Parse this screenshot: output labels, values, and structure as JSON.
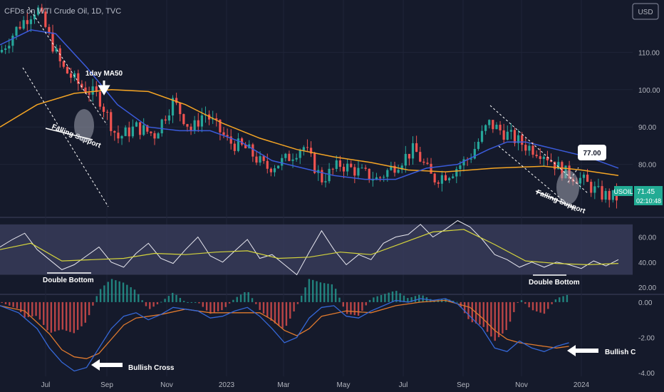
{
  "header": {
    "title": "CFDs on WTI Crude Oil, 1D, TVC",
    "currency": "USD"
  },
  "price_badge": {
    "symbol": "USOIL",
    "price": "71.45",
    "countdown": "02:10:48"
  },
  "colors": {
    "background": "#151a2b",
    "up": "#26a69a",
    "down": "#ef5350",
    "ma50": "#3b5bdb",
    "ma200": "#f5a524",
    "rsi": "#e8e8f0",
    "rsi_ma": "#d4d43c",
    "macd": "#3568d8",
    "signal": "#e07a2e",
    "rsi_band": "#3a3d5c",
    "badge": "#22ab94"
  },
  "chart_data": [
    {
      "type": "line",
      "name": "price",
      "x_ticks": [
        "Jul",
        "Sep",
        "Nov",
        "2023",
        "Mar",
        "May",
        "Jul",
        "Sep",
        "Nov",
        "2024"
      ],
      "y_ticks": [
        "110.00",
        "100.00",
        "90.00",
        "80.00"
      ],
      "ylim": [
        66,
        124
      ],
      "price_path": [
        [
          0,
          110
        ],
        [
          3,
          117
        ],
        [
          6,
          122
        ],
        [
          10,
          106
        ],
        [
          13,
          101
        ],
        [
          16,
          98
        ],
        [
          19,
          87
        ],
        [
          22,
          90
        ],
        [
          25,
          88
        ],
        [
          28,
          97
        ],
        [
          31,
          89
        ],
        [
          33,
          94
        ],
        [
          35,
          90
        ],
        [
          37,
          86
        ],
        [
          40,
          84
        ],
        [
          43,
          79
        ],
        [
          46,
          81
        ],
        [
          49,
          85
        ],
        [
          52,
          76
        ],
        [
          55,
          80
        ],
        [
          58,
          78
        ],
        [
          61,
          76
        ],
        [
          64,
          80
        ],
        [
          67,
          84
        ],
        [
          70,
          76
        ],
        [
          73,
          78
        ],
        [
          76,
          82
        ],
        [
          79,
          91
        ],
        [
          82,
          88
        ],
        [
          85,
          85
        ],
        [
          88,
          83
        ],
        [
          91,
          78
        ],
        [
          94,
          76
        ],
        [
          97,
          72
        ],
        [
          100,
          71
        ]
      ],
      "ma50": [
        [
          0,
          112
        ],
        [
          5,
          116
        ],
        [
          9,
          115
        ],
        [
          14,
          106
        ],
        [
          19,
          96
        ],
        [
          24,
          90
        ],
        [
          29,
          89
        ],
        [
          34,
          89
        ],
        [
          39,
          86
        ],
        [
          44,
          81
        ],
        [
          49,
          79
        ],
        [
          54,
          77
        ],
        [
          59,
          76
        ],
        [
          64,
          76
        ],
        [
          69,
          79
        ],
        [
          74,
          80
        ],
        [
          79,
          84
        ],
        [
          82,
          86
        ],
        [
          85,
          86
        ],
        [
          90,
          84
        ],
        [
          95,
          82
        ],
        [
          100,
          79
        ]
      ],
      "ma200": [
        [
          0,
          90
        ],
        [
          6,
          96
        ],
        [
          12,
          99
        ],
        [
          18,
          100
        ],
        [
          24,
          99.5
        ],
        [
          30,
          96
        ],
        [
          36,
          91
        ],
        [
          42,
          87
        ],
        [
          48,
          84
        ],
        [
          54,
          82
        ],
        [
          60,
          80.5
        ],
        [
          66,
          78.5
        ],
        [
          72,
          78
        ],
        [
          80,
          79
        ],
        [
          88,
          79.5
        ],
        [
          94,
          78.5
        ],
        [
          100,
          77
        ]
      ],
      "target": "77.00",
      "annotations": [
        "1day MA50",
        "Falling Support",
        "Falling Support"
      ]
    },
    {
      "type": "line",
      "name": "rsi",
      "y_ticks": [
        "60.00",
        "40.00",
        "20.00"
      ],
      "ylim": [
        15,
        75
      ],
      "band": [
        30,
        70
      ],
      "rsi": [
        [
          0,
          52
        ],
        [
          2,
          58
        ],
        [
          4,
          63
        ],
        [
          6,
          50
        ],
        [
          8,
          42
        ],
        [
          10,
          34
        ],
        [
          12,
          38
        ],
        [
          14,
          45
        ],
        [
          16,
          52
        ],
        [
          18,
          40
        ],
        [
          20,
          36
        ],
        [
          22,
          47
        ],
        [
          24,
          55
        ],
        [
          26,
          43
        ],
        [
          28,
          39
        ],
        [
          30,
          50
        ],
        [
          32,
          60
        ],
        [
          34,
          45
        ],
        [
          36,
          40
        ],
        [
          38,
          49
        ],
        [
          40,
          58
        ],
        [
          42,
          43
        ],
        [
          44,
          46
        ],
        [
          46,
          38
        ],
        [
          48,
          30
        ],
        [
          50,
          48
        ],
        [
          52,
          65
        ],
        [
          54,
          50
        ],
        [
          56,
          38
        ],
        [
          58,
          46
        ],
        [
          60,
          42
        ],
        [
          62,
          55
        ],
        [
          64,
          60
        ],
        [
          66,
          62
        ],
        [
          68,
          70
        ],
        [
          70,
          60
        ],
        [
          72,
          66
        ],
        [
          74,
          73
        ],
        [
          76,
          68
        ],
        [
          78,
          58
        ],
        [
          80,
          46
        ],
        [
          82,
          42
        ],
        [
          84,
          36
        ],
        [
          86,
          40
        ],
        [
          88,
          36
        ],
        [
          90,
          40
        ],
        [
          92,
          38
        ],
        [
          94,
          35
        ],
        [
          96,
          41
        ],
        [
          98,
          37
        ],
        [
          100,
          42
        ]
      ],
      "rsi_ma": [
        [
          0,
          50
        ],
        [
          5,
          55
        ],
        [
          10,
          41
        ],
        [
          15,
          42
        ],
        [
          20,
          43
        ],
        [
          25,
          47
        ],
        [
          30,
          46
        ],
        [
          35,
          48
        ],
        [
          40,
          49
        ],
        [
          45,
          43
        ],
        [
          50,
          44
        ],
        [
          55,
          48
        ],
        [
          60,
          46
        ],
        [
          65,
          55
        ],
        [
          70,
          64
        ],
        [
          75,
          66
        ],
        [
          80,
          54
        ],
        [
          85,
          41
        ],
        [
          90,
          39
        ],
        [
          95,
          38
        ],
        [
          100,
          39
        ]
      ],
      "annotations": [
        "Double Bottom",
        "Double Bottom"
      ]
    },
    {
      "type": "line",
      "name": "macd",
      "y_ticks": [
        "0.00",
        "-2.00",
        "-4.00"
      ],
      "ylim": [
        -4.2,
        0.4
      ],
      "macd": [
        [
          0,
          -0.2
        ],
        [
          3,
          -0.6
        ],
        [
          6,
          -1.5
        ],
        [
          8,
          -2.6
        ],
        [
          10,
          -3.4
        ],
        [
          12,
          -3.9
        ],
        [
          14,
          -3.7
        ],
        [
          16,
          -2.6
        ],
        [
          18,
          -1.5
        ],
        [
          20,
          -0.8
        ],
        [
          22,
          -0.6
        ],
        [
          24,
          -1.0
        ],
        [
          26,
          -0.7
        ],
        [
          28,
          -0.3
        ],
        [
          30,
          -0.4
        ],
        [
          32,
          -0.5
        ],
        [
          34,
          -0.9
        ],
        [
          36,
          -0.8
        ],
        [
          38,
          -0.5
        ],
        [
          40,
          -0.3
        ],
        [
          42,
          -0.8
        ],
        [
          44,
          -1.5
        ],
        [
          46,
          -2.3
        ],
        [
          48,
          -2.0
        ],
        [
          50,
          -0.9
        ],
        [
          52,
          -0.3
        ],
        [
          54,
          -0.2
        ],
        [
          56,
          -0.8
        ],
        [
          58,
          -0.9
        ],
        [
          60,
          -0.5
        ],
        [
          62,
          -0.2
        ],
        [
          64,
          0.1
        ],
        [
          66,
          0.0
        ],
        [
          68,
          0.2
        ],
        [
          70,
          0.1
        ],
        [
          72,
          0.2
        ],
        [
          74,
          -0.1
        ],
        [
          76,
          -0.8
        ],
        [
          78,
          -1.5
        ],
        [
          80,
          -2.6
        ],
        [
          82,
          -2.8
        ],
        [
          84,
          -2.2
        ],
        [
          86,
          -2.6
        ],
        [
          88,
          -2.8
        ],
        [
          90,
          -2.5
        ],
        [
          92,
          -2.3
        ]
      ],
      "signal": [
        [
          0,
          -0.2
        ],
        [
          4,
          -0.5
        ],
        [
          8,
          -1.8
        ],
        [
          10,
          -2.7
        ],
        [
          12,
          -3.1
        ],
        [
          14,
          -3.2
        ],
        [
          16,
          -2.9
        ],
        [
          18,
          -2.1
        ],
        [
          20,
          -1.3
        ],
        [
          22,
          -0.9
        ],
        [
          26,
          -0.7
        ],
        [
          30,
          -0.4
        ],
        [
          34,
          -0.6
        ],
        [
          38,
          -0.6
        ],
        [
          42,
          -0.6
        ],
        [
          44,
          -1.0
        ],
        [
          46,
          -1.6
        ],
        [
          48,
          -1.9
        ],
        [
          50,
          -1.5
        ],
        [
          52,
          -0.8
        ],
        [
          56,
          -0.5
        ],
        [
          60,
          -0.6
        ],
        [
          64,
          -0.2
        ],
        [
          68,
          0.0
        ],
        [
          72,
          0.1
        ],
        [
          76,
          -0.3
        ],
        [
          78,
          -0.9
        ],
        [
          80,
          -1.6
        ],
        [
          82,
          -2.1
        ],
        [
          84,
          -2.3
        ],
        [
          86,
          -2.4
        ],
        [
          88,
          -2.5
        ],
        [
          90,
          -2.6
        ],
        [
          92,
          -2.5
        ]
      ],
      "annotations": [
        "Bullish Cross",
        "Bullish C"
      ]
    }
  ]
}
